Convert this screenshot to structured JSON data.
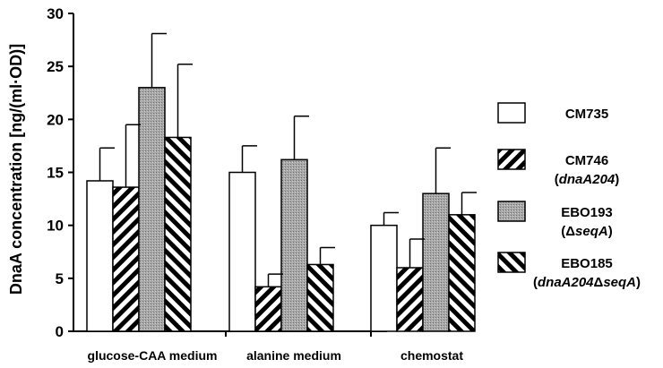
{
  "chart_data": {
    "type": "bar",
    "title": "",
    "xlabel": "",
    "ylabel": "DnaA concentration [ng/(ml·OD)]",
    "ylim": [
      0,
      30
    ],
    "yticks": [
      "0",
      "5",
      "10",
      "15",
      "20",
      "25",
      "30"
    ],
    "categories": [
      "glucose-CAA medium",
      "alanine medium",
      "chemostat"
    ],
    "error_bars": true,
    "legend_placement": "right",
    "series": [
      {
        "name": "CM735",
        "name_parts": [
          {
            "text": "CM735",
            "italic": false
          }
        ],
        "pattern": "white",
        "values": [
          14.2,
          15.0,
          10.0
        ],
        "errors": [
          3.1,
          2.5,
          1.2
        ]
      },
      {
        "name": "CM746 (dnaA204)",
        "name_parts": [
          {
            "text": "CM746",
            "italic": false
          },
          {
            "text": "(",
            "italic": false,
            "newline": true
          },
          {
            "text": "dnaA204",
            "italic": true
          },
          {
            "text": ")",
            "italic": false
          }
        ],
        "pattern": "diagonal-right",
        "values": [
          13.6,
          4.2,
          6.0
        ],
        "errors": [
          5.9,
          1.2,
          2.7
        ]
      },
      {
        "name": "EBO193 (ΔseqA)",
        "name_parts": [
          {
            "text": "EBO193",
            "italic": false
          },
          {
            "text": "(Δ",
            "italic": false,
            "newline": true
          },
          {
            "text": "seqA",
            "italic": true
          },
          {
            "text": ")",
            "italic": false
          }
        ],
        "pattern": "gray",
        "values": [
          23.0,
          16.2,
          13.0
        ],
        "errors": [
          5.1,
          4.1,
          4.3
        ]
      },
      {
        "name": "EBO185 (dnaA204ΔseqA)",
        "name_parts": [
          {
            "text": "EBO185",
            "italic": false
          },
          {
            "text": "(",
            "italic": false,
            "newline": true
          },
          {
            "text": "dnaA204",
            "italic": true
          },
          {
            "text": "Δ",
            "italic": false
          },
          {
            "text": "seqA",
            "italic": true
          },
          {
            "text": ")",
            "italic": false
          }
        ],
        "pattern": "diagonal-left",
        "values": [
          18.3,
          6.3,
          11.0
        ],
        "errors": [
          6.9,
          1.6,
          2.1
        ]
      }
    ]
  }
}
